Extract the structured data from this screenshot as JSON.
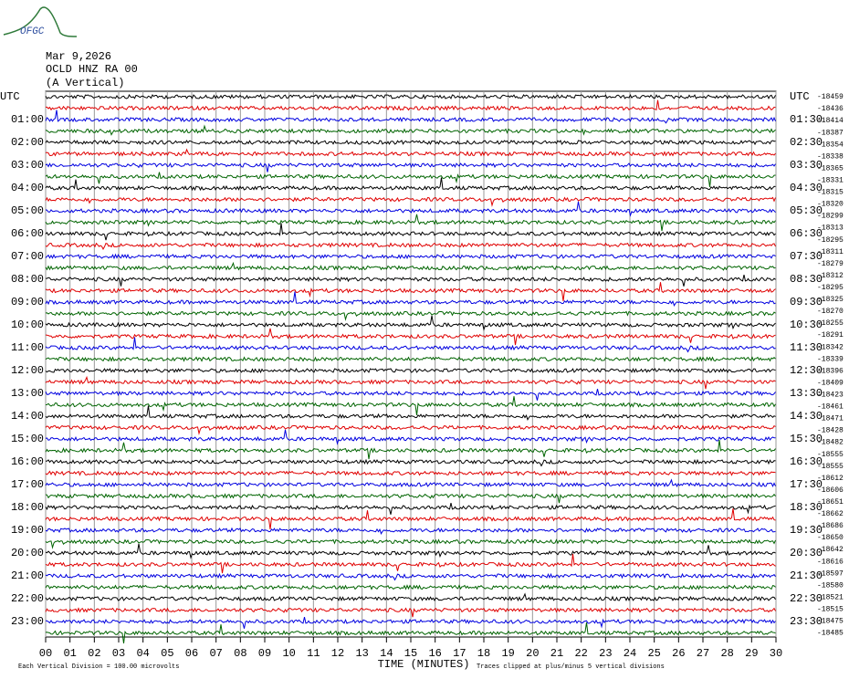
{
  "chart_data": {
    "type": "helicorder",
    "logo": "OFGC",
    "title_lines": [
      "Mar 9,2026",
      "OCLD HNZ RA 00",
      "(A Vertical)"
    ],
    "xlabel": "TIME (MINUTES)",
    "footer_left": "Each Vertical Division =  100.00 microvolts",
    "footer_right": "Traces clipped at plus/minus 5 vertical divisions",
    "categories": [
      "00",
      "01",
      "02",
      "03",
      "04",
      "05",
      "06",
      "07",
      "08",
      "09",
      "10",
      "11",
      "12",
      "13",
      "14",
      "15",
      "16",
      "17",
      "18",
      "19",
      "20",
      "21",
      "22",
      "23",
      "24",
      "25",
      "26",
      "27",
      "28",
      "29",
      "30"
    ],
    "left_labels": [
      "UTC",
      "01:00",
      "02:00",
      "03:00",
      "04:00",
      "05:00",
      "06:00",
      "07:00",
      "08:00",
      "09:00",
      "10:00",
      "11:00",
      "12:00",
      "13:00",
      "14:00",
      "15:00",
      "16:00",
      "17:00",
      "18:00",
      "19:00",
      "20:00",
      "21:00",
      "22:00",
      "23:00"
    ],
    "right_labels": [
      "UTC",
      "01:30",
      "02:30",
      "03:30",
      "04:30",
      "05:30",
      "06:30",
      "07:30",
      "08:30",
      "09:30",
      "10:30",
      "11:30",
      "12:30",
      "13:30",
      "14:30",
      "15:30",
      "16:30",
      "17:30",
      "18:30",
      "19:30",
      "20:30",
      "21:30",
      "22:30",
      "23:30"
    ],
    "offsets": [
      -18459,
      -18436,
      -18414,
      -18387,
      -18354,
      -18338,
      -18365,
      -18331,
      -18315,
      -18320,
      -18299,
      -18313,
      -18295,
      -18311,
      -18279,
      -18312,
      -18295,
      -18325,
      -18270,
      -18255,
      -18291,
      -18342,
      -18339,
      -18396,
      -18409,
      -18423,
      -18461,
      -18471,
      -18428,
      -18482,
      -18555,
      -18555,
      -18612,
      -18606,
      -18651,
      -18662,
      -18686,
      -18650,
      -18642,
      -18616,
      -18597,
      -18580,
      -18521,
      -18515,
      -18475,
      -18485
    ],
    "trace_colors": [
      "#000000",
      "#e00000",
      "#0000e0",
      "#006400"
    ]
  }
}
